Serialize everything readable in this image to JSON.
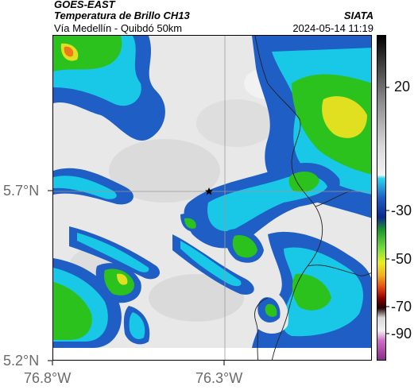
{
  "header": {
    "satellite": "GOES-EAST",
    "product": "Temperatura de Brillo CH13",
    "route": "Vía Medellín - Quibdó 50km",
    "agency": "SIATA",
    "datetime": "2024-05-14 11:19"
  },
  "axes": {
    "lat_ticks": [
      "5.7°N",
      "5.2°N"
    ],
    "lon_ticks": [
      "76.8°W",
      "76.3°W"
    ]
  },
  "colorbar": {
    "ticks": [
      "20",
      "-30",
      "-50",
      "-70",
      "-90"
    ]
  },
  "map": {
    "marker": "star-icon",
    "gridlines": true
  },
  "colors": {
    "cold_cloud_blue": "#1f5ec4",
    "cyan": "#19c8e6",
    "green": "#2cc21e",
    "yellow": "#e0e020",
    "orange": "#f07a1a",
    "background_gray": "#e6e6e6"
  }
}
